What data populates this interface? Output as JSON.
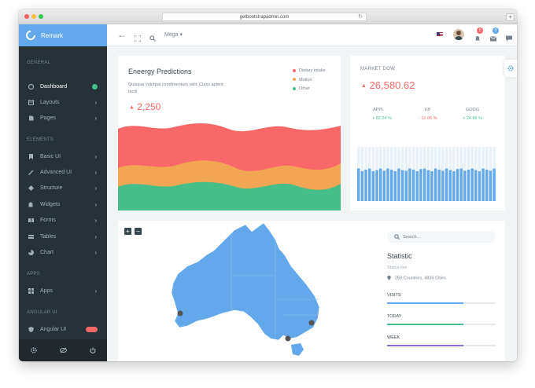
{
  "browser": {
    "url": "getbootstrapadmin.com"
  },
  "brand": {
    "name": "Remark"
  },
  "sidebar": {
    "sections": {
      "general": "GENERAL",
      "elements": "ELEMENTS",
      "apps": "APPS",
      "angular": "ANGULAR UI"
    },
    "items": [
      {
        "label": "Dashboard",
        "icon": "dashboard-icon"
      },
      {
        "label": "Layouts",
        "icon": "layouts-icon"
      },
      {
        "label": "Pages",
        "icon": "pages-icon"
      },
      {
        "label": "Basic UI",
        "icon": "bookmark-icon"
      },
      {
        "label": "Advanced UI",
        "icon": "wand-icon"
      },
      {
        "label": "Structure",
        "icon": "structure-icon"
      },
      {
        "label": "Widgets",
        "icon": "puzzle-icon"
      },
      {
        "label": "Forms",
        "icon": "forms-icon"
      },
      {
        "label": "Tables",
        "icon": "tables-icon"
      },
      {
        "label": "Chart",
        "icon": "chart-icon"
      },
      {
        "label": "Apps",
        "icon": "grid-icon"
      },
      {
        "label": "Angular UI",
        "icon": "shield-icon"
      }
    ]
  },
  "topbar": {
    "mega_label": "Mega",
    "notif_count": "5",
    "msg_count": "3"
  },
  "energy": {
    "title": "Eneergy Predictions",
    "desc_line1": "Quisque volutpat condimentum velit. Class aptent",
    "desc_line2": "taciti",
    "value": "2,250"
  },
  "legend": [
    {
      "label": "Dietary intake",
      "color": "#f96868"
    },
    {
      "label": "Motion",
      "color": "#f2a654"
    },
    {
      "label": "Other",
      "color": "#46be8a"
    }
  ],
  "market": {
    "title": "MARKET DOW",
    "value": "26,580.62",
    "tickers": [
      {
        "name": "APPL",
        "change": "+ 82.24 %",
        "color": "#46be8a"
      },
      {
        "name": "FB",
        "change": "- 12.06 %",
        "color": "#f96868"
      },
      {
        "name": "GOOG",
        "change": "+ 24.86 %",
        "color": "#46be8a"
      }
    ]
  },
  "map": {
    "zoom_in": "+",
    "zoom_out": "−"
  },
  "statistic": {
    "search_placeholder": "Search...",
    "title": "Statistic",
    "subtitle": "Status live",
    "location": "258 Countries, 4835 Cities",
    "bars": [
      {
        "label": "VISITS",
        "color": "#62a8ea",
        "fill": 0.7
      },
      {
        "label": "TODAY",
        "color": "#46be8a",
        "fill": 0.7
      },
      {
        "label": "WEEK",
        "color": "#926dde",
        "fill": 0.7
      }
    ]
  },
  "chart_data": [
    {
      "type": "area",
      "title": "Eneergy Predictions",
      "series": [
        {
          "name": "Dietary intake",
          "color": "#f96868"
        },
        {
          "name": "Motion",
          "color": "#f2a654"
        },
        {
          "name": "Other",
          "color": "#46be8a"
        }
      ]
    },
    {
      "type": "bar",
      "title": "MARKET DOW",
      "values": [
        0.6,
        0.55,
        0.58,
        0.6,
        0.55,
        0.57,
        0.6,
        0.56,
        0.6,
        0.58,
        0.55,
        0.6,
        0.57,
        0.56,
        0.6,
        0.58,
        0.55,
        0.59,
        0.6,
        0.57,
        0.55,
        0.6,
        0.58,
        0.56,
        0.6,
        0.57,
        0.55,
        0.59,
        0.6,
        0.56,
        0.58,
        0.6,
        0.57,
        0.55,
        0.6,
        0.58,
        0.56,
        0.6
      ],
      "ylim": [
        0,
        1
      ]
    }
  ]
}
